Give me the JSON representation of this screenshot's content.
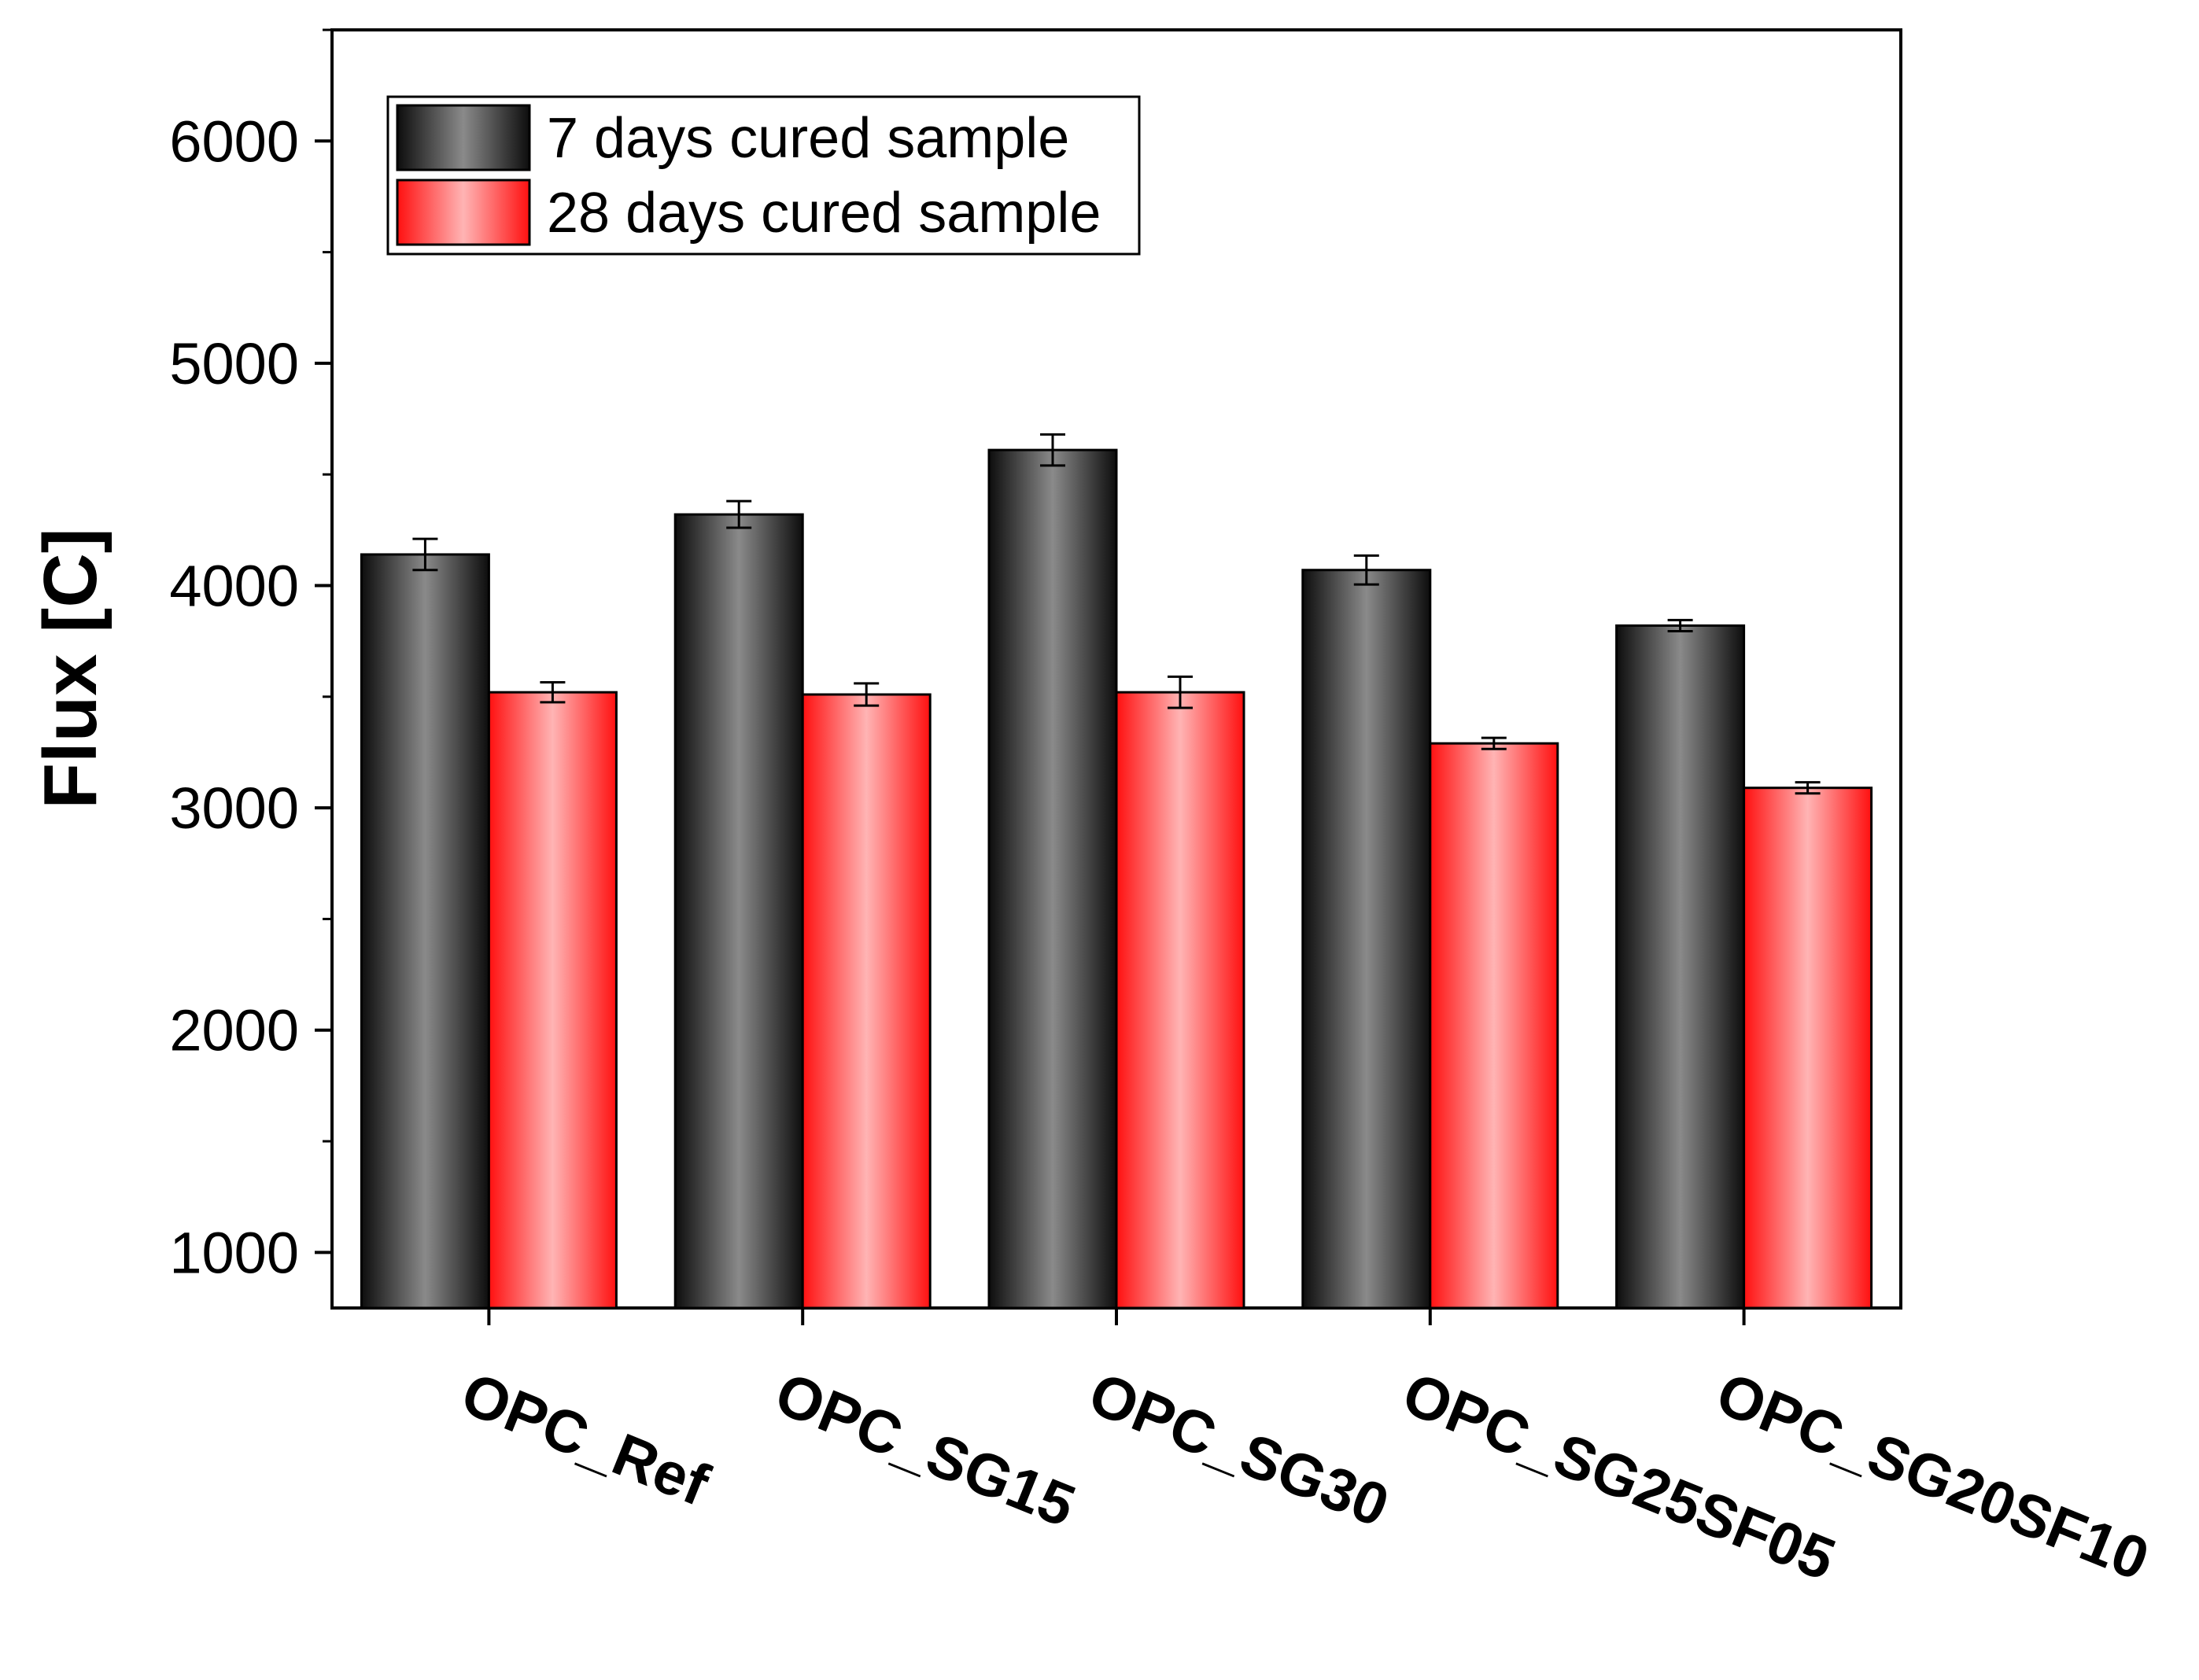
{
  "chart_data": {
    "type": "bar",
    "title": "",
    "xlabel": "",
    "ylabel": "Flux [C]",
    "ylim": [
      750,
      6500
    ],
    "yticks": [
      1000,
      2000,
      3000,
      4000,
      5000,
      6000
    ],
    "yticks_labels": [
      "1000",
      "2000",
      "3000",
      "4000",
      "5000",
      "6000"
    ],
    "grid": false,
    "legend_position": "top-left",
    "categories": [
      "OPC_Ref",
      "OPC_SG15",
      "OPC_SG30",
      "OPC_SG25SF05",
      "OPC_SG20SF10"
    ],
    "series": [
      {
        "name": "7 days cured sample",
        "color": "#3a3a3a",
        "values": [
          4140,
          4320,
          4610,
          4070,
          3820
        ],
        "errors": [
          70,
          60,
          70,
          65,
          25
        ]
      },
      {
        "name": "28 days cured sample",
        "color": "#ff3030",
        "values": [
          3520,
          3510,
          3520,
          3290,
          3090
        ],
        "errors": [
          45,
          50,
          70,
          25,
          25
        ]
      }
    ]
  }
}
